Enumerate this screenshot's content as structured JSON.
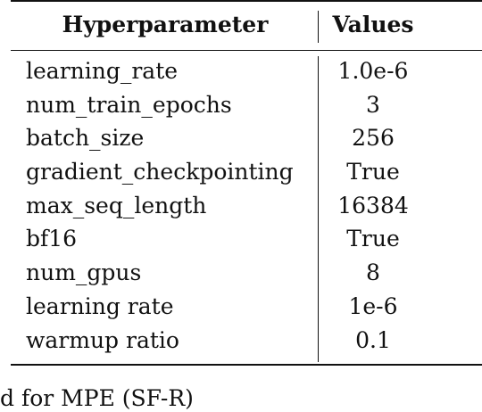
{
  "table": {
    "header": {
      "param": "Hyperparameter",
      "value": "Values"
    },
    "rows": [
      {
        "param": "learning_rate",
        "value": "1.0e-6"
      },
      {
        "param": "num_train_epochs",
        "value": "3"
      },
      {
        "param": "batch_size",
        "value": "256"
      },
      {
        "param": "gradient_checkpointing",
        "value": "True"
      },
      {
        "param": "max_seq_length",
        "value": "16384"
      },
      {
        "param": "bf16",
        "value": "True"
      },
      {
        "param": "num_gpus",
        "value": "8"
      },
      {
        "param": "learning rate",
        "value": "1e-6"
      },
      {
        "param": "warmup ratio",
        "value": "0.1"
      }
    ]
  },
  "caption": "d for MPE (SF-R)"
}
